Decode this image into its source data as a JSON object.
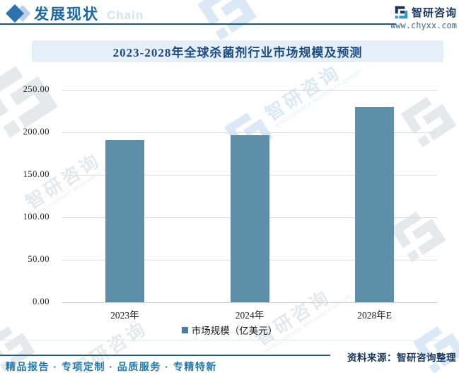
{
  "header": {
    "section_title": "发展现状",
    "ghost_text": "Chain",
    "brand_name": "智研咨询",
    "website": "www.chyxx.com"
  },
  "watermark": {
    "cn": "智研咨询",
    "en": "INTELLIGENCE RESEARCH GROUP"
  },
  "chart_data": {
    "type": "bar",
    "title": "2023-2028年全球杀菌剂行业市场规模及预测",
    "categories": [
      "2023年",
      "2024年",
      "2028年E"
    ],
    "series": [
      {
        "name": "市场规模（亿美元）",
        "values": [
          191,
          197,
          230
        ]
      }
    ],
    "ylim": [
      0,
      250
    ],
    "yticks": [
      "250.00",
      "200.00",
      "150.00",
      "100.00",
      "50.00",
      "0.00"
    ],
    "grid": true,
    "legend_position": "bottom",
    "bar_color": "#5d8fa8",
    "xlabel": "",
    "ylabel": ""
  },
  "footer": {
    "source_label": "资料来源：智研咨询整理",
    "tagline": "精品报告 · 专项定制 · 品质服务 · 专精特新"
  },
  "colors": {
    "accent_blue": "#1a68a7",
    "navy": "#16365f",
    "teal": "#2f9bc1",
    "bar": "#5d8fa8",
    "banner_bg": "#e4effa",
    "rule": "#17568c"
  }
}
